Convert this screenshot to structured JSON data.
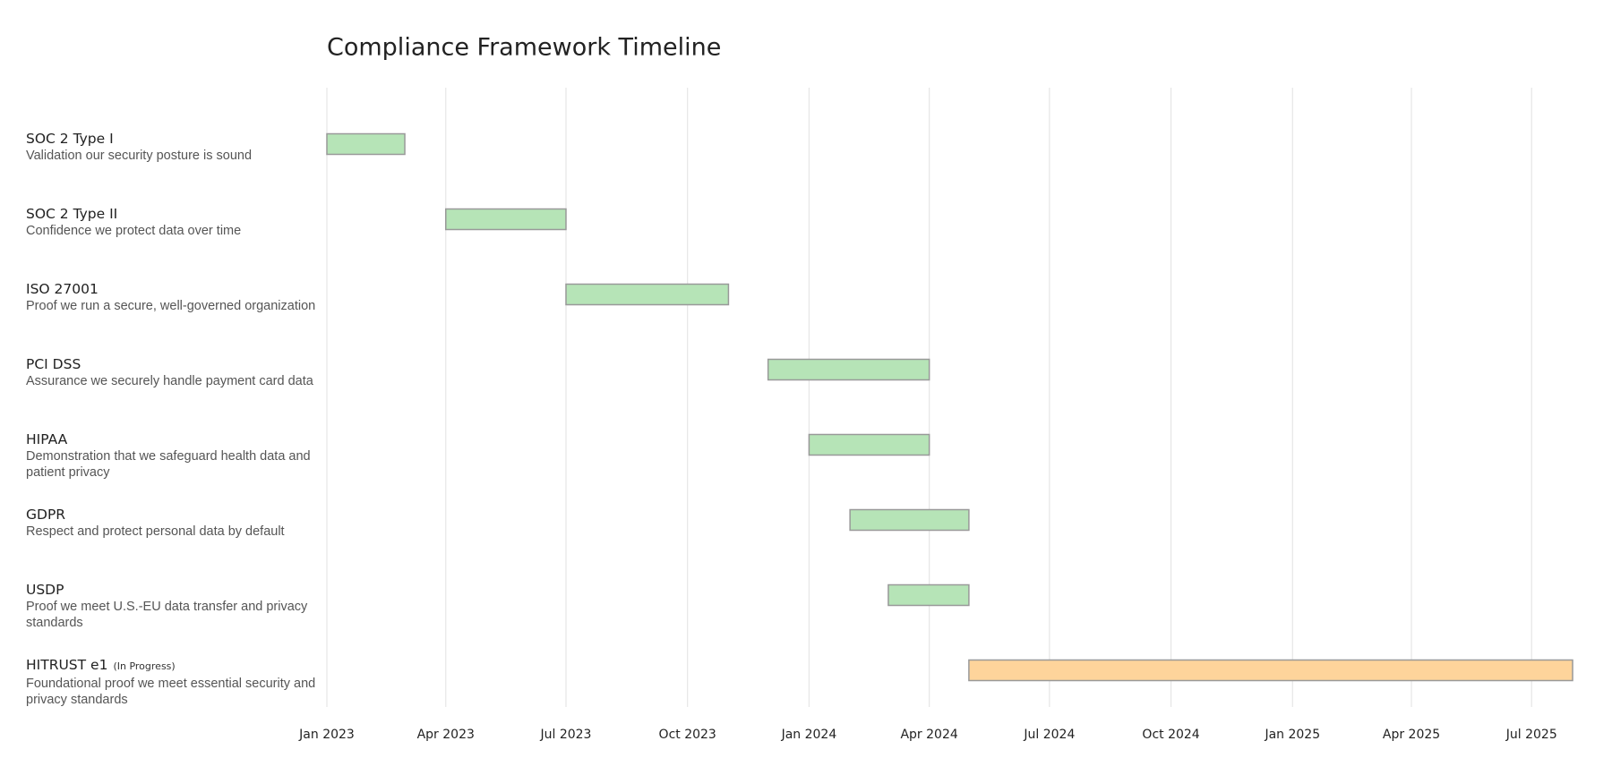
{
  "chart_data": {
    "type": "gantt",
    "title": "Compliance Framework Timeline",
    "tasks": [
      {
        "name": "SOC 2 Type I",
        "description": "Validation our security posture is sound",
        "start": "2023-01",
        "end": "2023-03",
        "color": "#b6e4b7"
      },
      {
        "name": "SOC 2 Type II",
        "description": "Confidence we protect data over time",
        "start": "2023-04",
        "end": "2023-07",
        "color": "#b6e4b7"
      },
      {
        "name": "ISO 27001",
        "description": "Proof we run a secure, well-governed organization",
        "start": "2023-07",
        "end": "2023-11",
        "color": "#b6e4b7"
      },
      {
        "name": "PCI DSS",
        "description": "Assurance we securely handle payment card data",
        "start": "2023-12",
        "end": "2024-04",
        "color": "#b6e4b7"
      },
      {
        "name": "HIPAA",
        "description": "Demonstration that we safeguard health data and patient privacy",
        "start": "2024-01",
        "end": "2024-04",
        "color": "#b6e4b7"
      },
      {
        "name": "GDPR",
        "description": "Respect and protect personal data by default",
        "start": "2024-02",
        "end": "2024-05",
        "color": "#b6e4b7"
      },
      {
        "name": "USDP",
        "description": "Proof we meet U.S.-EU data transfer and privacy standards",
        "start": "2024-03",
        "end": "2024-05",
        "color": "#b6e4b7"
      },
      {
        "name": "HITRUST e1",
        "status": "(In Progress)",
        "description": "Foundational proof we meet essential security and privacy standards",
        "start": "2024-05",
        "end": "2025-08",
        "color": "#fed49b"
      }
    ],
    "xlim": [
      "2023-01",
      "2025-08"
    ],
    "xticks": [
      {
        "value": "2023-01",
        "label": "Jan 2023"
      },
      {
        "value": "2023-04",
        "label": "Apr 2023"
      },
      {
        "value": "2023-07",
        "label": "Jul 2023"
      },
      {
        "value": "2023-10",
        "label": "Oct 2023"
      },
      {
        "value": "2024-01",
        "label": "Jan 2024"
      },
      {
        "value": "2024-04",
        "label": "Apr 2024"
      },
      {
        "value": "2024-07",
        "label": "Jul 2024"
      },
      {
        "value": "2024-10",
        "label": "Oct 2024"
      },
      {
        "value": "2025-01",
        "label": "Jan 2025"
      },
      {
        "value": "2025-04",
        "label": "Apr 2025"
      },
      {
        "value": "2025-07",
        "label": "Jul 2025"
      }
    ],
    "grid": true
  }
}
